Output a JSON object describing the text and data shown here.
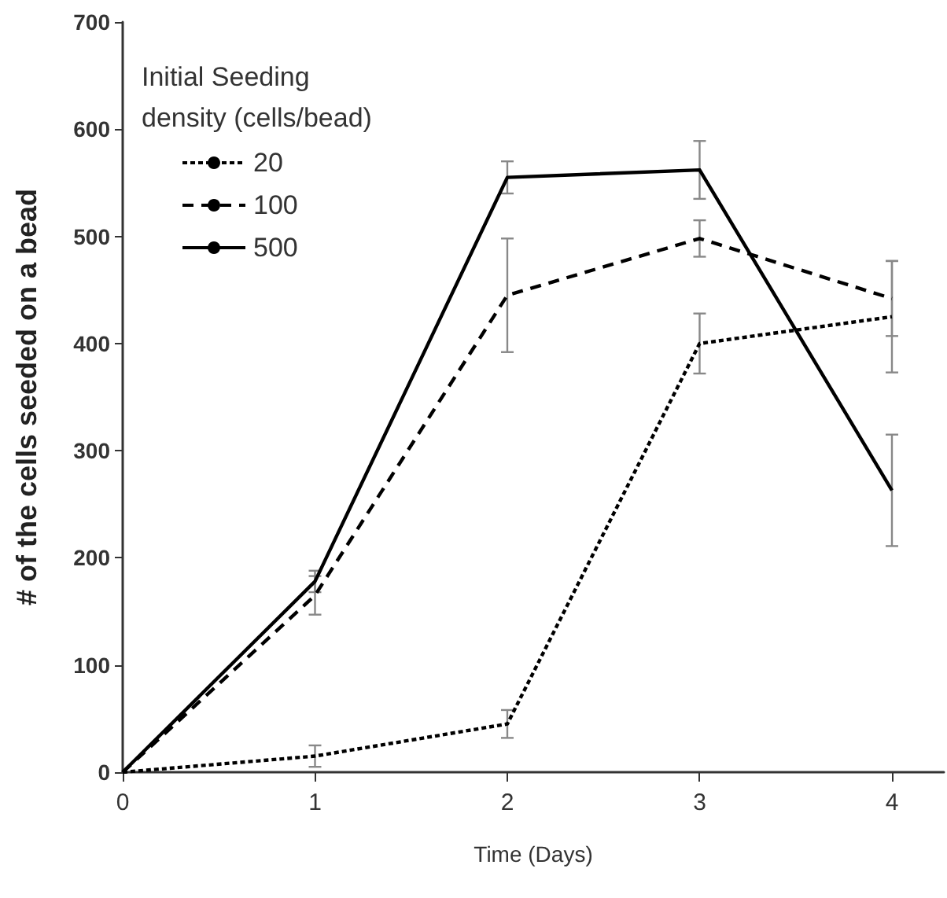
{
  "chart_data": {
    "type": "line",
    "xlabel": "Time (Days)",
    "ylabel": "# of the cells seeded on a bead",
    "legend_title": "Initial Seeding density (cells/bead)",
    "x": [
      0,
      1,
      2,
      3,
      4
    ],
    "series": [
      {
        "name": "20",
        "color": "#000000",
        "line_style": "dotted",
        "values": [
          0,
          15,
          45,
          400,
          425
        ],
        "errors": [
          null,
          10,
          13,
          28,
          52
        ]
      },
      {
        "name": "100",
        "color": "#000000",
        "line_style": "dashed",
        "values": [
          0,
          165,
          445,
          498,
          442
        ],
        "errors": [
          null,
          18,
          53,
          17,
          35
        ]
      },
      {
        "name": "500",
        "color": "#000000",
        "line_style": "solid",
        "values": [
          0,
          178,
          555,
          562,
          263
        ],
        "errors": [
          null,
          10,
          15,
          27,
          52
        ]
      }
    ],
    "xlim": [
      0,
      4.27
    ],
    "xticks": [
      0,
      1,
      2,
      3,
      4
    ],
    "ylim": [
      0,
      700
    ],
    "yticks": [
      0,
      100,
      200,
      300,
      400,
      500,
      600,
      700
    ],
    "grid": false,
    "legend": "top left",
    "marker": "none"
  }
}
